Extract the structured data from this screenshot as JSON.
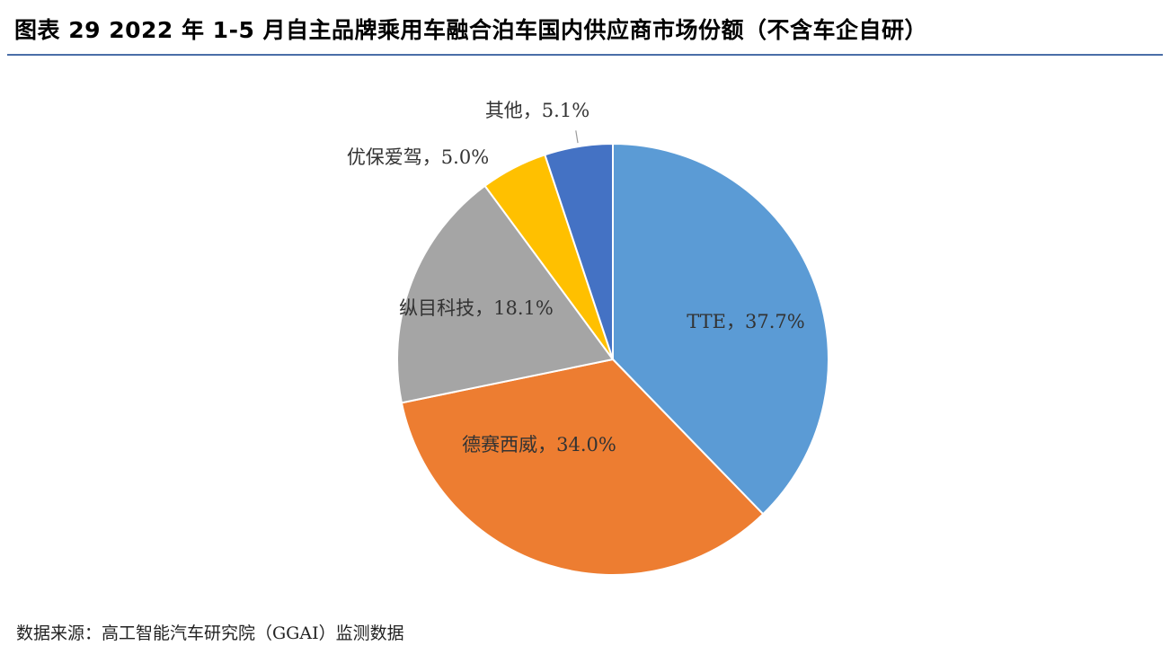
{
  "title": "图表 29   2022 年 1-5 月自主品牌乘用车融合泊车国内供应商市场份额（不含车企自研）",
  "source": "数据来源：高工智能汽车研究院（GGAI）监测数据",
  "chart_data": {
    "type": "pie",
    "title": "图表 29   2022 年 1-5 月自主品牌乘用车融合泊车国内供应商市场份额（不含车企自研）",
    "start_angle": "12 o'clock",
    "direction": "clockwise",
    "slices": [
      {
        "name": "TTE",
        "value": 37.7,
        "label": "TTE，37.7%",
        "color": "#5b9bd5"
      },
      {
        "name": "德赛西威",
        "value": 34.0,
        "label": "德赛西威，34.0%",
        "color": "#ed7d31"
      },
      {
        "name": "纵目科技",
        "value": 18.1,
        "label": "纵目科技，18.1%",
        "color": "#a5a5a5"
      },
      {
        "name": "优保爱驾",
        "value": 5.0,
        "label": "优保爱驾，5.0%",
        "color": "#ffc000"
      },
      {
        "name": "其他",
        "value": 5.1,
        "label": "其他，5.1%",
        "color": "#4472c4"
      }
    ]
  }
}
